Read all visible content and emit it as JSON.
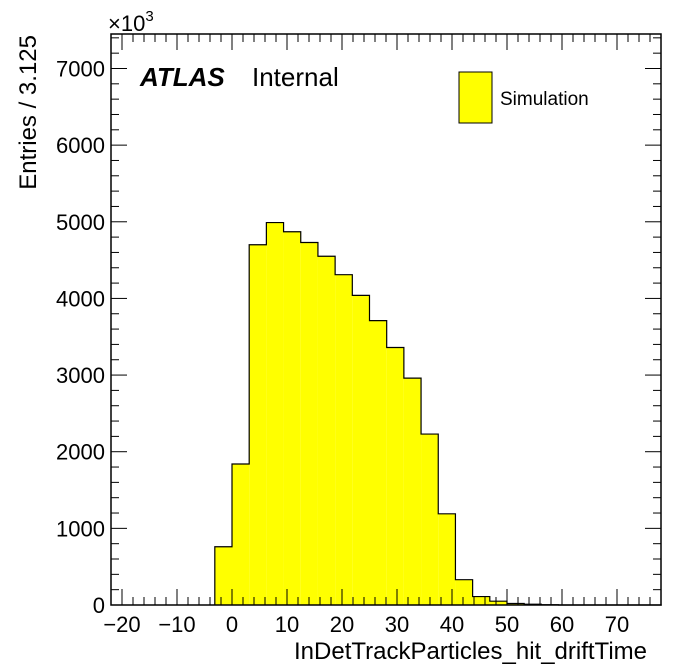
{
  "chart_data": {
    "type": "bar",
    "xlabel": "InDetTrackParticles_hit_driftTime",
    "ylabel": "Entries / 3.125",
    "y_multiplier_label": "×10",
    "y_multiplier_exponent": "3",
    "xlim": [
      -22,
      78
    ],
    "ylim": [
      0,
      7450
    ],
    "x_ticks": [
      -20,
      -10,
      0,
      10,
      20,
      30,
      40,
      50,
      60,
      70
    ],
    "x_tick_labels": [
      "−20",
      "−10",
      "0",
      "10",
      "20",
      "30",
      "40",
      "50",
      "60",
      "70"
    ],
    "y_ticks": [
      0,
      1000,
      2000,
      3000,
      4000,
      5000,
      6000,
      7000
    ],
    "y_tick_labels": [
      "0",
      "1000",
      "2000",
      "3000",
      "4000",
      "5000",
      "6000",
      "7000"
    ],
    "bin_width": 3.125,
    "bins_start": -3.125,
    "series": [
      {
        "name": "Simulation",
        "color": "#ffff00",
        "values": [
          760,
          1840,
          4700,
          4990,
          4870,
          4730,
          4550,
          4310,
          4040,
          3710,
          3360,
          2960,
          2230,
          1190,
          330,
          110,
          50,
          20,
          10,
          4,
          0,
          0,
          0,
          0,
          0,
          0
        ]
      }
    ],
    "legend": {
      "position": "top-right",
      "entries": [
        "Simulation"
      ]
    },
    "grid": false
  },
  "annotations": {
    "atlas": "ATLAS",
    "internal": "Internal"
  },
  "colors": {
    "fill": "#ffff00",
    "line": "#000000",
    "background": "#ffffff"
  }
}
